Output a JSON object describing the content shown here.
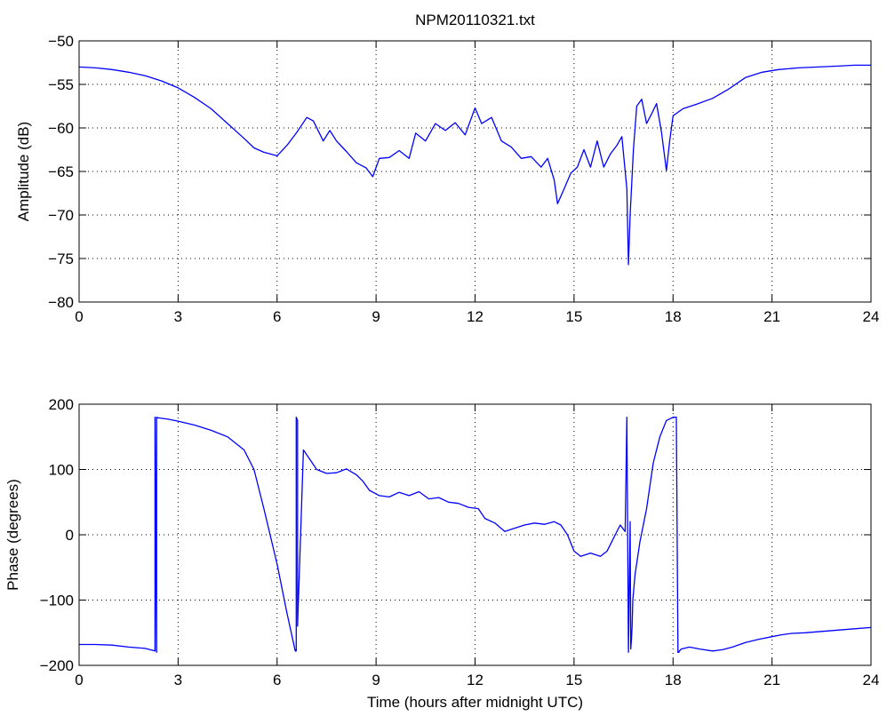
{
  "chart_data": [
    {
      "type": "line",
      "title": "NPM20110321.txt",
      "xlabel": "",
      "ylabel": "Amplitude (dB)",
      "xlim": [
        0,
        24
      ],
      "ylim": [
        -80,
        -50
      ],
      "xticks": [
        0,
        3,
        6,
        9,
        12,
        15,
        18,
        21,
        24
      ],
      "xtick_labels": [
        "0",
        "3",
        "6",
        "9",
        "12",
        "15",
        "18",
        "21",
        "24"
      ],
      "yticks": [
        -80,
        -75,
        -70,
        -65,
        -60,
        -55,
        -50
      ],
      "ytick_labels": [
        "−80",
        "−75",
        "−70",
        "−65",
        "−60",
        "−55",
        "−50"
      ],
      "grid": true,
      "color": "#0000ff",
      "series": [
        {
          "x": [
            0,
            0.5,
            1,
            1.5,
            2,
            2.5,
            3,
            3.5,
            4,
            4.5,
            5,
            5.3,
            5.6,
            6,
            6.3,
            6.6,
            6.9,
            7.1,
            7.4,
            7.6,
            7.8,
            8.1,
            8.4,
            8.7,
            8.9,
            9.1,
            9.4,
            9.7,
            10,
            10.2,
            10.5,
            10.8,
            11.1,
            11.4,
            11.7,
            12,
            12.2,
            12.5,
            12.8,
            13.1,
            13.4,
            13.7,
            14,
            14.2,
            14.4,
            14.5,
            14.7,
            14.9,
            15.1,
            15.3,
            15.5,
            15.7,
            15.9,
            16.1,
            16.3,
            16.45,
            16.6,
            16.65,
            16.7,
            16.8,
            16.9,
            17.05,
            17.2,
            17.35,
            17.5,
            17.65,
            17.8,
            17.9,
            18.0,
            18.3,
            18.7,
            19.2,
            19.7,
            20.2,
            20.7,
            21.2,
            21.8,
            22.4,
            23,
            23.5,
            24
          ],
          "y": [
            -53,
            -53.1,
            -53.3,
            -53.6,
            -54,
            -54.6,
            -55.4,
            -56.5,
            -57.8,
            -59.5,
            -61.2,
            -62.3,
            -62.8,
            -63.2,
            -62,
            -60.5,
            -58.8,
            -59.2,
            -61.5,
            -60.3,
            -61.5,
            -62.7,
            -64,
            -64.6,
            -65.6,
            -63.5,
            -63.4,
            -62.6,
            -63.5,
            -60.6,
            -61.5,
            -59.5,
            -60.3,
            -59.4,
            -60.8,
            -57.7,
            -59.5,
            -58.8,
            -61.5,
            -62.2,
            -63.5,
            -63.3,
            -64.5,
            -63.5,
            -66,
            -68.7,
            -67,
            -65.2,
            -64.5,
            -62.5,
            -64.5,
            -61.5,
            -64.5,
            -63,
            -62,
            -61,
            -67,
            -75.7,
            -70,
            -62.5,
            -57.5,
            -56.7,
            -59.5,
            -58.4,
            -57.2,
            -60.5,
            -64.9,
            -61.5,
            -58.6,
            -57.8,
            -57.3,
            -56.6,
            -55.5,
            -54.2,
            -53.6,
            -53.3,
            -53.1,
            -53,
            -52.9,
            -52.8,
            -52.8
          ]
        }
      ]
    },
    {
      "type": "line",
      "title": "",
      "xlabel": "Time (hours after midnight UTC)",
      "ylabel": "Phase (degrees)",
      "xlim": [
        0,
        24
      ],
      "ylim": [
        -200,
        200
      ],
      "xticks": [
        0,
        3,
        6,
        9,
        12,
        15,
        18,
        21,
        24
      ],
      "xtick_labels": [
        "0",
        "3",
        "6",
        "9",
        "12",
        "15",
        "18",
        "21",
        "24"
      ],
      "yticks": [
        -200,
        -100,
        0,
        100,
        200
      ],
      "ytick_labels": [
        "−200",
        "−100",
        "0",
        "100",
        "200"
      ],
      "grid": true,
      "color": "#0000ff",
      "series": [
        {
          "x": [
            0,
            0.5,
            1,
            1.5,
            2,
            2.3,
            2.3,
            2.35,
            2.35,
            2.4,
            2.7,
            3,
            3.5,
            4,
            4.5,
            5,
            5.3,
            5.6,
            6,
            6.3,
            6.55,
            6.58,
            6.58,
            6.62,
            6.62,
            6.8,
            7,
            7.2,
            7.5,
            7.8,
            8.1,
            8.4,
            8.6,
            8.8,
            9.1,
            9.4,
            9.7,
            10,
            10.3,
            10.6,
            10.9,
            11.2,
            11.5,
            11.8,
            12.1,
            12.3,
            12.6,
            12.9,
            13.2,
            13.5,
            13.8,
            14.1,
            14.4,
            14.6,
            14.8,
            15,
            15.2,
            15.5,
            15.8,
            16,
            16.2,
            16.4,
            16.55,
            16.6,
            16.65,
            16.7,
            16.72,
            16.74,
            16.76,
            16.78,
            16.85,
            17,
            17.2,
            17.4,
            17.6,
            17.8,
            18,
            18.1,
            18.15,
            18.18,
            18.18,
            18.25,
            18.5,
            18.8,
            19.2,
            19.5,
            19.8,
            20.2,
            20.6,
            21,
            21.3,
            21.6,
            22,
            22.5,
            23,
            23.5,
            24
          ],
          "y": [
            -168,
            -168,
            -169,
            -172,
            -174,
            -178,
            180,
            -180,
            180,
            179,
            177,
            174,
            168,
            160,
            150,
            130,
            100,
            40,
            -45,
            -120,
            -178,
            -178,
            180,
            175,
            -140,
            130,
            115,
            100,
            94,
            95,
            101,
            92,
            82,
            68,
            60,
            58,
            65,
            60,
            66,
            55,
            57,
            50,
            48,
            42,
            40,
            25,
            18,
            5,
            10,
            15,
            18,
            16,
            20,
            15,
            0,
            -25,
            -33,
            -28,
            -33,
            -25,
            -5,
            15,
            5,
            180,
            -180,
            20,
            -175,
            -160,
            -140,
            -100,
            -60,
            -10,
            40,
            110,
            150,
            175,
            180,
            180,
            -180,
            -180,
            -179,
            -175,
            -172,
            -175,
            -178,
            -176,
            -172,
            -165,
            -160,
            -156,
            -153,
            -151,
            -150,
            -148,
            -146,
            -144,
            -142
          ]
        }
      ]
    }
  ]
}
